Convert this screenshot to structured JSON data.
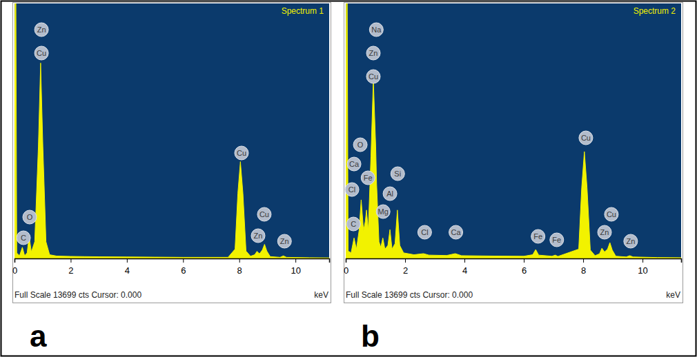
{
  "chart_data": [
    {
      "type": "area",
      "title": "Spectrum 1",
      "panel_label": "a",
      "x_label": "keV",
      "footer": "Full Scale 13699 cts Cursor: 0.000",
      "color": "#f2f200",
      "xlim": [
        0,
        11.2
      ],
      "ylim": [
        0,
        13699
      ],
      "xticks": [
        0,
        2,
        4,
        6,
        8,
        10
      ],
      "tick_labels": "x",
      "x": [
        0,
        0.02,
        0.05,
        0.08,
        0.18,
        0.28,
        0.36,
        0.45,
        0.52,
        0.6,
        0.72,
        0.85,
        0.93,
        1.01,
        1.12,
        1.25,
        1.5,
        2,
        2.5,
        3,
        4,
        5,
        6,
        7,
        7.6,
        7.85,
        7.95,
        8.04,
        8.13,
        8.24,
        8.4,
        8.55,
        8.63,
        8.72,
        8.82,
        8.9,
        8.98,
        9.1,
        9.45,
        9.57,
        9.68,
        10.5,
        11.2
      ],
      "values": [
        0,
        13699,
        13699,
        300,
        150,
        600,
        150,
        300,
        1200,
        350,
        900,
        6000,
        10500,
        6000,
        900,
        200,
        130,
        110,
        100,
        90,
        80,
        70,
        60,
        60,
        60,
        500,
        3500,
        5200,
        3500,
        400,
        120,
        200,
        380,
        250,
        450,
        760,
        400,
        100,
        60,
        140,
        60,
        40,
        30
      ],
      "annotations": [
        {
          "label": "Zn",
          "x": 0.96,
          "y": 12292
        },
        {
          "label": "Cu",
          "x": 0.96,
          "y": 11033
        },
        {
          "label": "O",
          "x": 0.54,
          "y": 2221
        },
        {
          "label": "C",
          "x": 0.32,
          "y": 1111
        },
        {
          "label": "Cu",
          "x": 8.08,
          "y": 5665
        },
        {
          "label": "Cu",
          "x": 8.89,
          "y": 2370
        },
        {
          "label": "Zn",
          "x": 8.67,
          "y": 1222
        },
        {
          "label": "Zn",
          "x": 9.61,
          "y": 926
        }
      ]
    },
    {
      "type": "area",
      "title": "Spectrum 2",
      "panel_label": "b",
      "x_label": "keV",
      "footer": "Full Scale 13699 cts Cursor: 0.000",
      "color": "#f2f200",
      "xlim": [
        0,
        11.3
      ],
      "ylim": [
        0,
        13699
      ],
      "xticks": [
        0,
        2,
        4,
        6,
        8,
        10
      ],
      "tick_labels": "x",
      "x": [
        0,
        0.02,
        0.05,
        0.08,
        0.18,
        0.28,
        0.36,
        0.45,
        0.52,
        0.6,
        0.66,
        0.7,
        0.76,
        0.85,
        0.93,
        1.01,
        1.04,
        1.12,
        1.18,
        1.25,
        1.32,
        1.42,
        1.49,
        1.56,
        1.66,
        1.74,
        1.82,
        1.95,
        2.3,
        2.62,
        2.8,
        3.4,
        3.69,
        3.9,
        5,
        6,
        6.3,
        6.4,
        6.5,
        6.95,
        7.06,
        7.15,
        7.85,
        7.95,
        8.04,
        8.13,
        8.24,
        8.4,
        8.55,
        8.63,
        8.72,
        8.82,
        8.9,
        8.98,
        9.1,
        9.45,
        9.57,
        9.68,
        10.5,
        11.3
      ],
      "values": [
        0,
        13699,
        13699,
        400,
        300,
        1100,
        500,
        1500,
        3150,
        1500,
        2000,
        2600,
        1500,
        5500,
        9600,
        6000,
        4000,
        900,
        600,
        1100,
        500,
        700,
        1550,
        500,
        800,
        2600,
        700,
        300,
        200,
        260,
        180,
        160,
        260,
        150,
        130,
        120,
        200,
        480,
        180,
        120,
        180,
        110,
        500,
        3800,
        5740,
        3800,
        450,
        150,
        250,
        550,
        350,
        500,
        850,
        450,
        120,
        80,
        150,
        80,
        50,
        40
      ],
      "annotations": [
        {
          "label": "Na",
          "x": 1.03,
          "y": 12292
        },
        {
          "label": "Zn",
          "x": 0.93,
          "y": 11033
        },
        {
          "label": "Cu",
          "x": 0.93,
          "y": 9774
        },
        {
          "label": "O",
          "x": 0.49,
          "y": 6109
        },
        {
          "label": "Ca",
          "x": 0.28,
          "y": 5072
        },
        {
          "label": "Fe",
          "x": 0.75,
          "y": 4332
        },
        {
          "label": "Cl",
          "x": 0.21,
          "y": 3702
        },
        {
          "label": "Si",
          "x": 1.75,
          "y": 4554
        },
        {
          "label": "Al",
          "x": 1.49,
          "y": 3480
        },
        {
          "label": "Mg",
          "x": 1.26,
          "y": 2518
        },
        {
          "label": "C",
          "x": 0.26,
          "y": 1851
        },
        {
          "label": "Cl",
          "x": 2.66,
          "y": 1407
        },
        {
          "label": "Ca",
          "x": 3.71,
          "y": 1407
        },
        {
          "label": "Fe",
          "x": 6.48,
          "y": 1185
        },
        {
          "label": "Fe",
          "x": 7.11,
          "y": 1000
        },
        {
          "label": "Cu",
          "x": 8.09,
          "y": 6479
        },
        {
          "label": "Zn",
          "x": 8.72,
          "y": 1407
        },
        {
          "label": "Cu",
          "x": 8.95,
          "y": 2370
        },
        {
          "label": "Zn",
          "x": 9.6,
          "y": 926
        }
      ]
    }
  ]
}
